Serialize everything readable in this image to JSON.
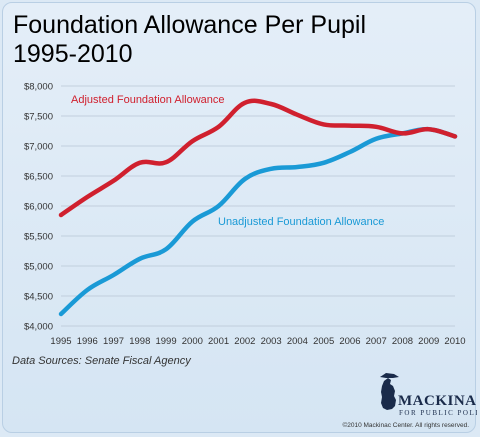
{
  "chart_data": {
    "type": "line",
    "title": "Foundation Allowance Per Pupil",
    "subtitle": "1995-2010",
    "x": [
      "1995",
      "1996",
      "1997",
      "1998",
      "1999",
      "2000",
      "2001",
      "2002",
      "2003",
      "2004",
      "2005",
      "2006",
      "2007",
      "2008",
      "2009",
      "2010"
    ],
    "ylim": [
      4000,
      8000
    ],
    "yticks": [
      4000,
      4500,
      5000,
      5500,
      6000,
      6500,
      7000,
      7500,
      8000
    ],
    "ytick_labels": [
      "$4,000",
      "$4,500",
      "$5,000",
      "$5,500",
      "$6,000",
      "$6,500",
      "$7,000",
      "$7,500",
      "$8,000"
    ],
    "grid": "horizontal",
    "series": [
      {
        "name": "Adjusted Foundation Allowance",
        "color": "#d0202e",
        "values": [
          5850,
          6150,
          6420,
          6720,
          6730,
          7080,
          7320,
          7720,
          7700,
          7520,
          7360,
          7340,
          7320,
          7210,
          7280,
          7160
        ]
      },
      {
        "name": "Unadjusted Foundation Allowance",
        "color": "#1a9ad6",
        "values": [
          4200,
          4600,
          4850,
          5120,
          5280,
          5740,
          6000,
          6450,
          6620,
          6650,
          6720,
          6900,
          7120,
          7210,
          7280,
          7160
        ]
      }
    ],
    "source": "Data Sources: Senate Fiscal Agency"
  },
  "logo": {
    "name": "MACKINAC CENTER",
    "tagline": "FOR PUBLIC POLICY",
    "copyright": "©2010 Mackinac Center. All rights reserved."
  },
  "colors": {
    "background": "#dce9f5",
    "grid": "#b8c6d4",
    "logo": "#1a2b4a"
  }
}
